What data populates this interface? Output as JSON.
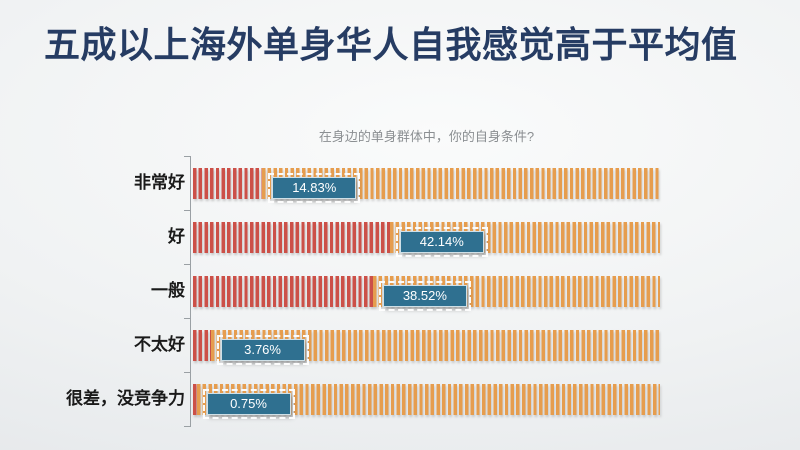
{
  "slide": {
    "title": "五成以上海外单身华人自我感觉高于平均值"
  },
  "chart_data": {
    "type": "bar",
    "orientation": "horizontal",
    "title": "在身边的单身群体中，你的自身条件?",
    "categories": [
      "非常好",
      "好",
      "一般",
      "不太好",
      "很差，没竞争力"
    ],
    "values": [
      14.83,
      42.14,
      38.52,
      3.76,
      0.75
    ],
    "value_labels": [
      "14.83%",
      "42.14%",
      "38.52%",
      "3.76%",
      "0.75%"
    ],
    "xlim": [
      0,
      100
    ],
    "legend": false,
    "gridlines": false,
    "bar_style": "vertical-stripes, value portion in red, remainder to 100% in orange",
    "label_style": "blue badge with white dashed outline placed at end of value portion",
    "colors": {
      "value_bar": "#cc5048",
      "remainder_bar": "#e69d4e",
      "value_badge": "#2f7090",
      "badge_text": "#ffffff",
      "title_text": "#263c63",
      "subtitle_text": "#8b8f92",
      "axis": "#9aa0a4",
      "category_text": "#1a1a1a"
    }
  }
}
